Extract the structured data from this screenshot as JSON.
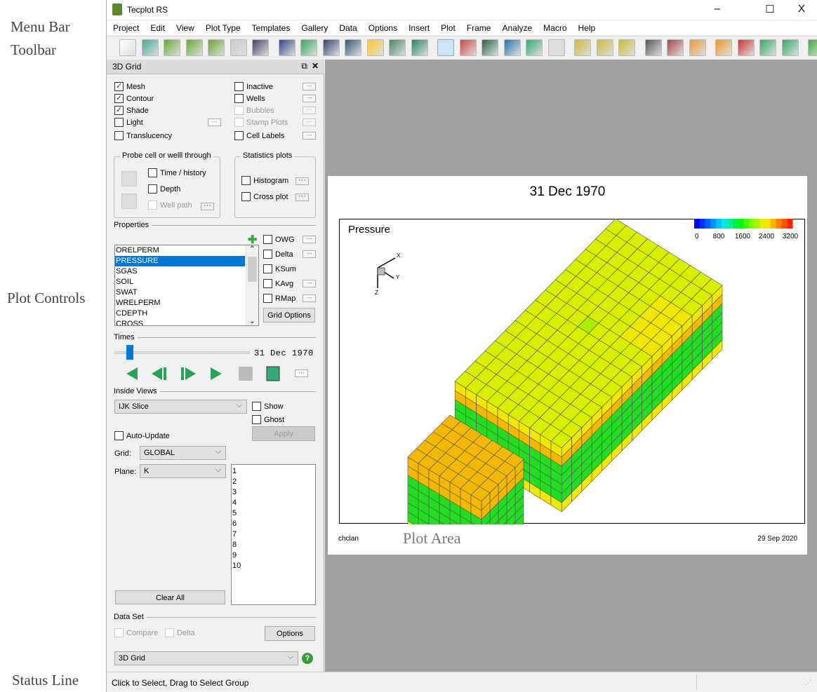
{
  "annotations": {
    "menu_bar": "Menu Bar",
    "toolbar": "Toolbar",
    "plot_controls": "Plot Controls",
    "plot_area": "Plot Area",
    "status_line": "Status Line"
  },
  "window": {
    "title": "Tecplot RS",
    "minimize": "–",
    "maximize": "☐",
    "close": "X"
  },
  "menu": [
    "Project",
    "Edit",
    "View",
    "Plot Type",
    "Templates",
    "Gallery",
    "Data",
    "Options",
    "Insert",
    "Plot",
    "Frame",
    "Analyze",
    "Macro",
    "Help"
  ],
  "toolbar_icons": [
    "new-icon",
    "open-icon",
    "load-xy-icon",
    "load-grid-icon",
    "load-vdb-icon",
    "copy-icon",
    "save-icon",
    "zoom-icon",
    "translate-icon",
    "rotate-icon",
    "rotate-3d-icon",
    "light-icon",
    "paint-icon",
    "undo-icon",
    "select-icon",
    "adjust-icon",
    "text-icon",
    "text-style-icon",
    "frame-layout-icon",
    "page-icon",
    "ruler-icon",
    "grid-probe-icon",
    "label-icon",
    "path-icon",
    "grid-icon",
    "flip-icon",
    "bar-chart-icon",
    "matrix-icon",
    "integral-icon",
    "function-icon",
    "recycle-icon"
  ],
  "panel": {
    "title": "3D Grid",
    "left_checks": [
      {
        "label": "Mesh",
        "checked": true
      },
      {
        "label": "Contour",
        "checked": true
      },
      {
        "label": "Shade",
        "checked": true
      },
      {
        "label": "Light",
        "checked": false
      },
      {
        "label": "Translucency",
        "checked": false
      }
    ],
    "right_checks": [
      {
        "label": "Inactive",
        "checked": false,
        "enabled": true
      },
      {
        "label": "Wells",
        "checked": false,
        "enabled": true
      },
      {
        "label": "Bubbles",
        "checked": false,
        "enabled": false
      },
      {
        "label": "Stamp Plots",
        "checked": false,
        "enabled": false
      },
      {
        "label": "Cell Labels",
        "checked": false,
        "enabled": true
      }
    ],
    "probe": {
      "title": "Probe cell or welll through",
      "time_history": "Time / history",
      "depth": "Depth",
      "well_path": "Well path"
    },
    "stats": {
      "title": "Statistics plots",
      "histogram": "Histogram",
      "cross_plot": "Cross plot"
    },
    "properties": {
      "title": "Properties",
      "items": [
        "ORELPERM",
        "PRESSURE",
        "SGAS",
        "SOIL",
        "SWAT",
        "WRELPERM",
        "CDEPTH",
        "CROSS"
      ],
      "selected": "PRESSURE",
      "checks": [
        "OWG",
        "Delta",
        "KSum",
        "KAvg",
        "RMap"
      ],
      "grid_options": "Grid Options"
    },
    "times": {
      "title": "Times",
      "value": "31 Dec 1970",
      "slider_position": 0.1
    },
    "inside_views": {
      "title": "Inside Views",
      "mode": "IJK Slice",
      "show": "Show",
      "ghost": "Ghost",
      "auto_update": "Auto-Update",
      "apply": "Apply",
      "grid_label": "Grid:",
      "grid_value": "GLOBAL",
      "plane_label": "Plane:",
      "plane_value": "K",
      "planes": [
        "1",
        "2",
        "3",
        "4",
        "5",
        "6",
        "7",
        "8",
        "9",
        "10"
      ],
      "clear_all": "Clear All"
    },
    "data_set": {
      "title": "Data Set",
      "compare": "Compare",
      "delta": "Delta",
      "options": "Options",
      "value": "3D Grid"
    }
  },
  "plot": {
    "title": "31 Dec 1970",
    "variable": "Pressure",
    "legend_ticks": [
      "0",
      "800",
      "1600",
      "2400",
      "3200"
    ],
    "footer_left": "chclan",
    "footer_right": "29 Sep 2020",
    "axes": {
      "x": "X",
      "y": "Y",
      "z": "Z"
    },
    "colors": {
      "top": "#d8f000",
      "yellow": "#f0e800",
      "orange": "#f4b800",
      "green": "#22dd22"
    }
  },
  "status": "Click to Select, Drag to Select Group"
}
